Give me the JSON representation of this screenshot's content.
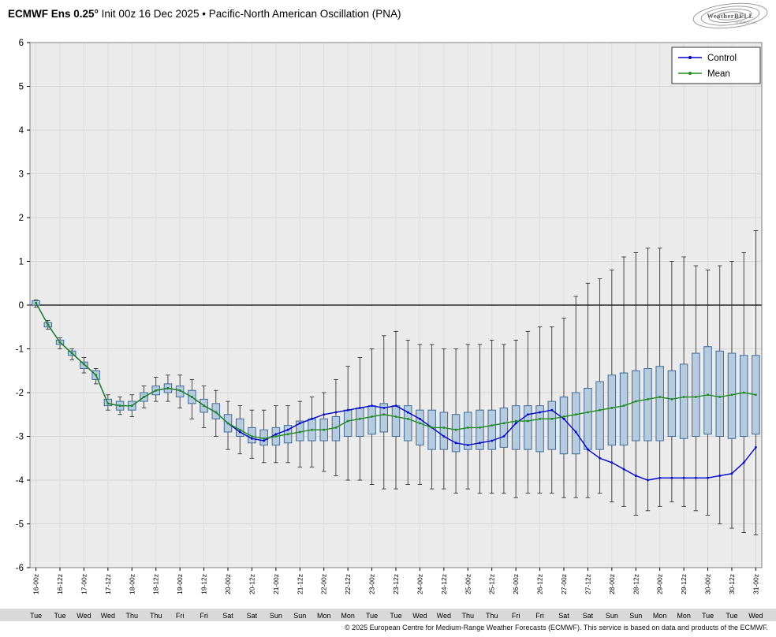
{
  "header": {
    "title_bold": "ECMWF Ens 0.25°",
    "title_rest": " Init 00z 16 Dec 2025 • Pacific-North American Oscillation (PNA)",
    "logo_text": "WeatherBELL",
    "logo_sub": "Analytics LLC"
  },
  "footer": {
    "copyright": "© 2025 European Centre for Medium-Range Weather Forecasts (ECMWF). This service is based on data and products of the ECMWF."
  },
  "chart_data": {
    "type": "box-whisker-ensemble",
    "title": "ECMWF Ens 0.25° Init 00z 16 Dec 2025 • Pacific-North American Oscillation (PNA)",
    "ylim": [
      -6,
      6
    ],
    "yticks": [
      6,
      5,
      4,
      3,
      2,
      1,
      0,
      -1,
      -2,
      -3,
      -4,
      -5,
      -6
    ],
    "step_hours": 6,
    "legend": [
      "Control",
      "Mean"
    ],
    "legend_position": "top-right",
    "grid": true,
    "colors": {
      "control": "#0000cc",
      "mean": "#1e8a1e",
      "box_fill": "#b7cbdf",
      "box_edge": "#3f6b9a",
      "whisker": "#222222",
      "background": "#ebebeb",
      "zero_line": "#000000",
      "day_band": "#d9d9d9"
    },
    "x_tick_labels": [
      "16-00z",
      "16-12z",
      "17-00z",
      "17-12z",
      "18-00z",
      "18-12z",
      "19-00z",
      "19-12z",
      "20-00z",
      "20-12z",
      "21-00z",
      "21-12z",
      "22-00z",
      "22-12z",
      "23-00z",
      "23-12z",
      "24-00z",
      "24-12z",
      "25-00z",
      "25-12z",
      "26-00z",
      "26-12z",
      "27-00z",
      "27-12z",
      "28-00z",
      "28-12z",
      "29-00z",
      "29-12z",
      "30-00z",
      "30-12z",
      "31-00z"
    ],
    "day_labels": [
      "Tue",
      "Tue",
      "Wed",
      "Wed",
      "Thu",
      "Thu",
      "Fri",
      "Fri",
      "Sat",
      "Sat",
      "Sun",
      "Sun",
      "Mon",
      "Mon",
      "Tue",
      "Tue",
      "Wed",
      "Wed",
      "Thu",
      "Thu",
      "Fri",
      "Fri",
      "Sat",
      "Sat",
      "Sun",
      "Sun",
      "Mon",
      "Mon",
      "Tue",
      "Tue",
      "Wed"
    ],
    "series": {
      "control": [
        0.05,
        -0.45,
        -0.85,
        -1.1,
        -1.35,
        -1.6,
        -2.25,
        -2.3,
        -2.3,
        -2.1,
        -1.95,
        -1.9,
        -1.95,
        -2.1,
        -2.3,
        -2.45,
        -2.7,
        -2.9,
        -3.05,
        -3.1,
        -2.95,
        -2.85,
        -2.7,
        -2.6,
        -2.5,
        -2.45,
        -2.4,
        -2.35,
        -2.3,
        -2.35,
        -2.3,
        -2.45,
        -2.6,
        -2.8,
        -3.0,
        -3.15,
        -3.2,
        -3.15,
        -3.1,
        -3.0,
        -2.7,
        -2.5,
        -2.45,
        -2.4,
        -2.6,
        -2.9,
        -3.3,
        -3.5,
        -3.6,
        -3.75,
        -3.9,
        -4.0,
        -3.95,
        -3.95,
        -3.95,
        -3.95,
        -3.95,
        -3.9,
        -3.85,
        -3.6,
        -3.25
      ],
      "mean": [
        0.05,
        -0.45,
        -0.85,
        -1.1,
        -1.35,
        -1.6,
        -2.25,
        -2.3,
        -2.3,
        -2.1,
        -1.95,
        -1.9,
        -1.95,
        -2.1,
        -2.3,
        -2.45,
        -2.7,
        -2.85,
        -3.0,
        -3.05,
        -3.0,
        -2.95,
        -2.9,
        -2.85,
        -2.85,
        -2.8,
        -2.65,
        -2.6,
        -2.55,
        -2.5,
        -2.55,
        -2.6,
        -2.7,
        -2.8,
        -2.8,
        -2.85,
        -2.8,
        -2.8,
        -2.75,
        -2.7,
        -2.65,
        -2.65,
        -2.6,
        -2.6,
        -2.55,
        -2.5,
        -2.45,
        -2.4,
        -2.35,
        -2.3,
        -2.2,
        -2.15,
        -2.1,
        -2.15,
        -2.1,
        -2.1,
        -2.05,
        -2.1,
        -2.05,
        -2.0,
        -2.05
      ]
    },
    "boxes": {
      "lo": [
        -0.05,
        -0.55,
        -1.0,
        -1.25,
        -1.55,
        -1.8,
        -2.4,
        -2.5,
        -2.55,
        -2.35,
        -2.2,
        -2.2,
        -2.35,
        -2.6,
        -2.8,
        -3.0,
        -3.3,
        -3.4,
        -3.5,
        -3.6,
        -3.6,
        -3.6,
        -3.7,
        -3.7,
        -3.8,
        -3.9,
        -4.0,
        -4.0,
        -4.1,
        -4.2,
        -4.2,
        -4.1,
        -4.1,
        -4.2,
        -4.2,
        -4.3,
        -4.2,
        -4.3,
        -4.3,
        -4.3,
        -4.4,
        -4.3,
        -4.3,
        -4.3,
        -4.4,
        -4.4,
        -4.4,
        -4.3,
        -4.5,
        -4.6,
        -4.8,
        -4.7,
        -4.6,
        -4.5,
        -4.6,
        -4.7,
        -4.8,
        -5.0,
        -5.1,
        -5.2,
        -5.25
      ],
      "q1": [
        0.0,
        -0.5,
        -0.9,
        -1.15,
        -1.45,
        -1.7,
        -2.3,
        -2.4,
        -2.4,
        -2.2,
        -2.05,
        -2.0,
        -2.1,
        -2.25,
        -2.45,
        -2.6,
        -2.9,
        -3.0,
        -3.15,
        -3.2,
        -3.2,
        -3.15,
        -3.1,
        -3.1,
        -3.1,
        -3.1,
        -3.0,
        -3.0,
        -2.95,
        -2.9,
        -3.0,
        -3.1,
        -3.2,
        -3.3,
        -3.3,
        -3.35,
        -3.3,
        -3.3,
        -3.3,
        -3.25,
        -3.3,
        -3.3,
        -3.35,
        -3.3,
        -3.4,
        -3.4,
        -3.3,
        -3.3,
        -3.2,
        -3.2,
        -3.1,
        -3.1,
        -3.1,
        -3.0,
        -3.05,
        -3.0,
        -2.95,
        -3.0,
        -3.05,
        -3.0,
        -2.95
      ],
      "q3": [
        0.1,
        -0.4,
        -0.8,
        -1.05,
        -1.3,
        -1.5,
        -2.15,
        -2.2,
        -2.2,
        -2.0,
        -1.85,
        -1.8,
        -1.85,
        -1.95,
        -2.15,
        -2.25,
        -2.5,
        -2.6,
        -2.8,
        -2.85,
        -2.8,
        -2.75,
        -2.65,
        -2.6,
        -2.6,
        -2.55,
        -2.4,
        -2.35,
        -2.3,
        -2.25,
        -2.3,
        -2.3,
        -2.4,
        -2.4,
        -2.45,
        -2.5,
        -2.45,
        -2.4,
        -2.4,
        -2.35,
        -2.3,
        -2.3,
        -2.3,
        -2.2,
        -2.1,
        -2.0,
        -1.9,
        -1.75,
        -1.6,
        -1.55,
        -1.5,
        -1.45,
        -1.4,
        -1.5,
        -1.35,
        -1.1,
        -0.95,
        -1.05,
        -1.1,
        -1.15,
        -1.15
      ],
      "hi": [
        0.12,
        -0.35,
        -0.75,
        -1.0,
        -1.2,
        -1.45,
        -2.05,
        -2.1,
        -2.05,
        -1.85,
        -1.65,
        -1.6,
        -1.6,
        -1.7,
        -1.85,
        -1.95,
        -2.2,
        -2.3,
        -2.4,
        -2.4,
        -2.3,
        -2.3,
        -2.2,
        -2.1,
        -2.0,
        -1.7,
        -1.4,
        -1.2,
        -1.0,
        -0.7,
        -0.6,
        -0.8,
        -0.9,
        -0.9,
        -1.0,
        -1.0,
        -0.9,
        -0.9,
        -0.8,
        -0.9,
        -0.8,
        -0.6,
        -0.5,
        -0.5,
        -0.3,
        0.2,
        0.5,
        0.6,
        0.8,
        1.1,
        1.2,
        1.3,
        1.3,
        1.0,
        1.1,
        0.9,
        0.8,
        0.9,
        1.0,
        1.2,
        1.7
      ]
    }
  }
}
